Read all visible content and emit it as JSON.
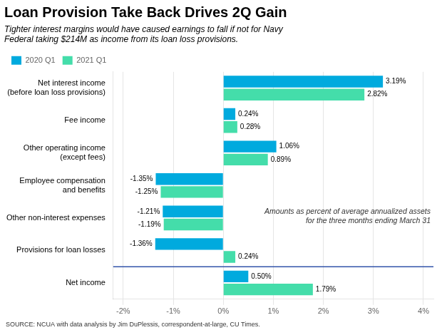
{
  "chart_data": {
    "type": "bar",
    "orientation": "horizontal",
    "title": "Loan Provision Take Back Drives 2Q Gain",
    "subtitle": "Tighter interest margins would have caused earnings to fall if not for Navy\nFederal taking $214M as income from its loan loss provisions.",
    "categories": [
      "Net interest income\n(before loan loss provisions)",
      "Fee income",
      "Other operating income\n(except fees)",
      "Employee compensation\nand benefits",
      "Other non-interest expenses",
      "Provisions for loan losses",
      "Net income"
    ],
    "series": [
      {
        "name": "2020 Q1",
        "color": "#00aade",
        "values": [
          3.19,
          0.24,
          1.06,
          -1.35,
          -1.21,
          -1.36,
          0.5
        ],
        "value_labels": [
          "3.19%",
          "0.24%",
          "1.06%",
          "-1.35%",
          "-1.21%",
          "-1.36%",
          "0.50%"
        ]
      },
      {
        "name": "2021 Q1",
        "color": "#44ddaa",
        "values": [
          2.82,
          0.28,
          0.89,
          -1.25,
          -1.19,
          0.24,
          1.79
        ],
        "value_labels": [
          "2.82%",
          "0.28%",
          "0.89%",
          "-1.25%",
          "-1.19%",
          "0.24%",
          "1.79%"
        ]
      }
    ],
    "xlim": [
      -2.2,
      4.2
    ],
    "xticks": [
      {
        "value": -2,
        "label": "-2%"
      },
      {
        "value": -1,
        "label": "-1%"
      },
      {
        "value": 0,
        "label": "0%"
      },
      {
        "value": 1,
        "label": "1%"
      },
      {
        "value": 2,
        "label": "2%"
      },
      {
        "value": 3,
        "label": "3%"
      },
      {
        "value": 4,
        "label": "4%"
      }
    ],
    "grid": true,
    "legend": "upper left",
    "data_labels": true,
    "annotation": "Amounts as percent of average annualized assets\nfor the three months ending March 31",
    "source": "SOURCE: NCUA with data analysis by Jim DuPlessis, correspondent-at-large, CU Times."
  }
}
